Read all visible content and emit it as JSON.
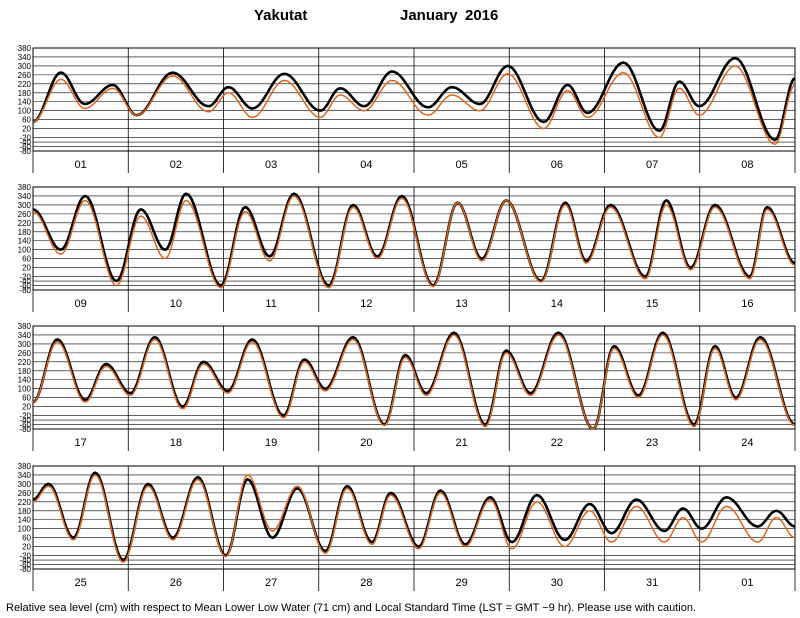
{
  "title": {
    "station": "Yakutat",
    "month": "January",
    "year": "2016"
  },
  "footer": "Relative sea level (cm) with respect to Mean Lower Low Water (71 cm) and Local Standard Time (LST = GMT −9 hr). Please use with caution.",
  "colors": {
    "observed": "#000000",
    "predicted": "#e0651a",
    "grid": "#000000",
    "background": "#ffffff"
  },
  "chart_data": {
    "type": "line",
    "ylabel": "",
    "xlabel": "",
    "ylim": [
      -80,
      380
    ],
    "yticks": [
      380,
      340,
      300,
      260,
      220,
      180,
      140,
      100,
      60,
      20,
      -20,
      -40,
      -60,
      -80
    ],
    "series": [
      {
        "name": "",
        "role": "observed",
        "color": "#000000"
      },
      {
        "name": "",
        "role": "predicted",
        "color": "#e0651a"
      }
    ],
    "panels": [
      {
        "days": [
          "01",
          "02",
          "03",
          "04",
          "05",
          "06",
          "07",
          "08"
        ],
        "observed_extrema": [
          [
            0.0,
            50
          ],
          [
            0.35,
            270
          ],
          [
            0.65,
            130
          ],
          [
            1.0,
            215
          ],
          [
            1.3,
            80
          ],
          [
            1.75,
            270
          ],
          [
            2.2,
            120
          ],
          [
            2.45,
            205
          ],
          [
            2.75,
            110
          ],
          [
            3.15,
            265
          ],
          [
            3.6,
            100
          ],
          [
            3.85,
            200
          ],
          [
            4.15,
            120
          ],
          [
            4.5,
            275
          ],
          [
            4.95,
            115
          ],
          [
            5.25,
            205
          ],
          [
            5.6,
            130
          ],
          [
            5.95,
            300
          ],
          [
            6.4,
            50
          ],
          [
            6.7,
            215
          ],
          [
            6.95,
            90
          ],
          [
            7.4,
            315
          ],
          [
            7.85,
            10
          ],
          [
            8.1,
            230
          ],
          [
            8.35,
            120
          ],
          [
            8.8,
            335
          ],
          [
            9.3,
            -30
          ],
          [
            9.55,
            245
          ]
        ],
        "predicted_extrema": [
          [
            0.0,
            50
          ],
          [
            0.35,
            240
          ],
          [
            0.65,
            110
          ],
          [
            1.0,
            200
          ],
          [
            1.3,
            80
          ],
          [
            1.75,
            255
          ],
          [
            2.2,
            95
          ],
          [
            2.45,
            180
          ],
          [
            2.75,
            70
          ],
          [
            3.15,
            235
          ],
          [
            3.6,
            70
          ],
          [
            3.85,
            170
          ],
          [
            4.15,
            100
          ],
          [
            4.5,
            235
          ],
          [
            4.95,
            80
          ],
          [
            5.25,
            170
          ],
          [
            5.6,
            100
          ],
          [
            5.95,
            265
          ],
          [
            6.4,
            20
          ],
          [
            6.7,
            190
          ],
          [
            6.95,
            70
          ],
          [
            7.4,
            270
          ],
          [
            7.85,
            -20
          ],
          [
            8.1,
            200
          ],
          [
            8.35,
            80
          ],
          [
            8.8,
            300
          ],
          [
            9.3,
            -50
          ],
          [
            9.55,
            215
          ]
        ]
      },
      {
        "days": [
          "09",
          "10",
          "11",
          "12",
          "13",
          "14",
          "15",
          "16"
        ],
        "observed_extrema": [
          [
            0.0,
            280
          ],
          [
            0.4,
            100
          ],
          [
            0.75,
            340
          ],
          [
            1.2,
            -40
          ],
          [
            1.55,
            280
          ],
          [
            1.9,
            100
          ],
          [
            2.2,
            350
          ],
          [
            2.7,
            -60
          ],
          [
            3.05,
            290
          ],
          [
            3.4,
            70
          ],
          [
            3.75,
            350
          ],
          [
            4.25,
            -60
          ],
          [
            4.6,
            300
          ],
          [
            4.95,
            70
          ],
          [
            5.3,
            340
          ],
          [
            5.75,
            -60
          ],
          [
            6.1,
            310
          ],
          [
            6.45,
            60
          ],
          [
            6.8,
            320
          ],
          [
            7.3,
            -40
          ],
          [
            7.65,
            310
          ],
          [
            7.95,
            50
          ],
          [
            8.3,
            300
          ],
          [
            8.8,
            -20
          ],
          [
            9.1,
            320
          ],
          [
            9.45,
            20
          ],
          [
            9.8,
            300
          ],
          [
            10.3,
            -20
          ],
          [
            10.55,
            290
          ],
          [
            10.95,
            40
          ]
        ],
        "predicted_extrema": [
          [
            0.0,
            270
          ],
          [
            0.4,
            80
          ],
          [
            0.75,
            320
          ],
          [
            1.2,
            -60
          ],
          [
            1.55,
            250
          ],
          [
            1.9,
            60
          ],
          [
            2.2,
            320
          ],
          [
            2.7,
            -70
          ],
          [
            3.05,
            270
          ],
          [
            3.4,
            50
          ],
          [
            3.75,
            340
          ],
          [
            4.25,
            -70
          ],
          [
            4.6,
            290
          ],
          [
            4.95,
            60
          ],
          [
            5.3,
            330
          ],
          [
            5.75,
            -65
          ],
          [
            6.1,
            310
          ],
          [
            6.45,
            50
          ],
          [
            6.8,
            320
          ],
          [
            7.3,
            -45
          ],
          [
            7.65,
            300
          ],
          [
            7.95,
            40
          ],
          [
            8.3,
            290
          ],
          [
            8.8,
            -30
          ],
          [
            9.1,
            300
          ],
          [
            9.45,
            10
          ],
          [
            9.8,
            290
          ],
          [
            10.3,
            -30
          ],
          [
            10.55,
            280
          ],
          [
            10.95,
            30
          ]
        ]
      },
      {
        "days": [
          "17",
          "18",
          "19",
          "20",
          "21",
          "22",
          "23",
          "24"
        ],
        "observed_extrema": [
          [
            0.0,
            40
          ],
          [
            0.35,
            320
          ],
          [
            0.75,
            50
          ],
          [
            1.05,
            210
          ],
          [
            1.4,
            80
          ],
          [
            1.75,
            330
          ],
          [
            2.15,
            20
          ],
          [
            2.45,
            220
          ],
          [
            2.8,
            90
          ],
          [
            3.15,
            320
          ],
          [
            3.6,
            -20
          ],
          [
            3.9,
            230
          ],
          [
            4.2,
            100
          ],
          [
            4.6,
            330
          ],
          [
            5.05,
            -60
          ],
          [
            5.35,
            250
          ],
          [
            5.65,
            80
          ],
          [
            6.05,
            350
          ],
          [
            6.5,
            -60
          ],
          [
            6.8,
            270
          ],
          [
            7.15,
            80
          ],
          [
            7.55,
            350
          ],
          [
            8.05,
            -80
          ],
          [
            8.35,
            290
          ],
          [
            8.7,
            70
          ],
          [
            9.05,
            350
          ],
          [
            9.5,
            -60
          ],
          [
            9.8,
            290
          ],
          [
            10.1,
            60
          ],
          [
            10.45,
            330
          ],
          [
            10.95,
            -60
          ]
        ],
        "predicted_extrema": [
          [
            0.0,
            40
          ],
          [
            0.35,
            310
          ],
          [
            0.75,
            40
          ],
          [
            1.05,
            200
          ],
          [
            1.4,
            70
          ],
          [
            1.75,
            320
          ],
          [
            2.15,
            10
          ],
          [
            2.45,
            210
          ],
          [
            2.8,
            80
          ],
          [
            3.15,
            310
          ],
          [
            3.6,
            -30
          ],
          [
            3.9,
            220
          ],
          [
            4.2,
            90
          ],
          [
            4.6,
            320
          ],
          [
            5.05,
            -65
          ],
          [
            5.35,
            240
          ],
          [
            5.65,
            70
          ],
          [
            6.05,
            340
          ],
          [
            6.5,
            -70
          ],
          [
            6.8,
            260
          ],
          [
            7.15,
            70
          ],
          [
            7.55,
            340
          ],
          [
            8.05,
            -80
          ],
          [
            8.35,
            280
          ],
          [
            8.7,
            60
          ],
          [
            9.05,
            340
          ],
          [
            9.5,
            -70
          ],
          [
            9.8,
            280
          ],
          [
            10.1,
            50
          ],
          [
            10.45,
            320
          ],
          [
            10.95,
            -65
          ]
        ]
      },
      {
        "days": [
          "25",
          "26",
          "27",
          "28",
          "29",
          "30",
          "31",
          "01"
        ],
        "observed_extrema": [
          [
            0.0,
            230
          ],
          [
            0.25,
            300
          ],
          [
            0.65,
            60
          ],
          [
            1.0,
            350
          ],
          [
            1.45,
            -40
          ],
          [
            1.85,
            300
          ],
          [
            2.25,
            60
          ],
          [
            2.65,
            330
          ],
          [
            3.1,
            -20
          ],
          [
            3.45,
            320
          ],
          [
            3.85,
            60
          ],
          [
            4.25,
            280
          ],
          [
            4.7,
            0
          ],
          [
            5.05,
            290
          ],
          [
            5.45,
            40
          ],
          [
            5.75,
            260
          ],
          [
            6.2,
            20
          ],
          [
            6.55,
            270
          ],
          [
            6.95,
            30
          ],
          [
            7.35,
            240
          ],
          [
            7.7,
            40
          ],
          [
            8.1,
            250
          ],
          [
            8.55,
            50
          ],
          [
            8.95,
            210
          ],
          [
            9.3,
            80
          ],
          [
            9.7,
            230
          ],
          [
            10.15,
            90
          ],
          [
            10.45,
            190
          ],
          [
            10.75,
            100
          ],
          [
            11.15,
            240
          ],
          [
            11.65,
            110
          ],
          [
            11.95,
            180
          ],
          [
            12.25,
            110
          ]
        ],
        "predicted_extrema": [
          [
            0.0,
            220
          ],
          [
            0.25,
            290
          ],
          [
            0.65,
            50
          ],
          [
            1.0,
            340
          ],
          [
            1.45,
            -50
          ],
          [
            1.85,
            290
          ],
          [
            2.25,
            50
          ],
          [
            2.65,
            320
          ],
          [
            3.1,
            -25
          ],
          [
            3.45,
            340
          ],
          [
            3.85,
            90
          ],
          [
            4.25,
            290
          ],
          [
            4.7,
            -10
          ],
          [
            5.05,
            280
          ],
          [
            5.45,
            30
          ],
          [
            5.75,
            250
          ],
          [
            6.2,
            10
          ],
          [
            6.55,
            260
          ],
          [
            6.95,
            20
          ],
          [
            7.35,
            230
          ],
          [
            7.7,
            10
          ],
          [
            8.1,
            220
          ],
          [
            8.55,
            20
          ],
          [
            8.95,
            180
          ],
          [
            9.3,
            40
          ],
          [
            9.7,
            200
          ],
          [
            10.15,
            40
          ],
          [
            10.45,
            150
          ],
          [
            10.75,
            40
          ],
          [
            11.15,
            200
          ],
          [
            11.65,
            40
          ],
          [
            11.95,
            150
          ],
          [
            12.25,
            60
          ]
        ]
      }
    ]
  }
}
